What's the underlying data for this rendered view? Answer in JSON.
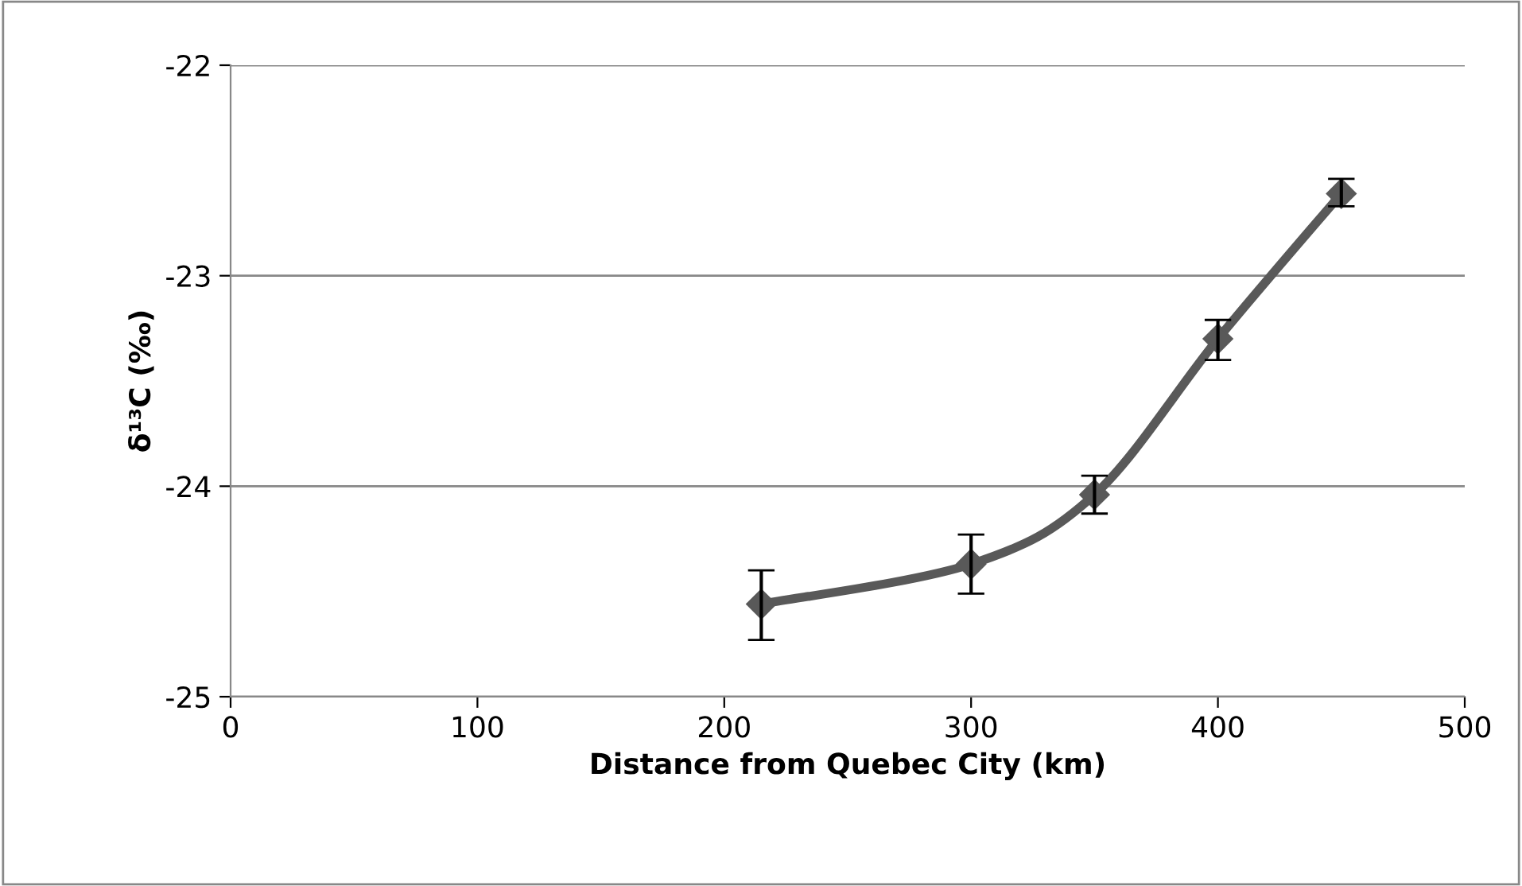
{
  "chart_data": {
    "type": "line",
    "xlabel": "Distance from Quebec City (km)",
    "ylabel": "δ¹³C (‰)",
    "x": [
      215,
      300,
      350,
      400,
      450
    ],
    "series": [
      {
        "color": "#595959",
        "values": [
          -24.56,
          -24.37,
          -24.04,
          -23.3,
          -22.61
        ],
        "errors": [
          [
            -24.73,
            -24.4
          ],
          [
            -24.51,
            -24.23
          ],
          [
            -24.13,
            -23.95
          ],
          [
            -23.4,
            -23.21
          ],
          [
            -22.67,
            -22.54
          ]
        ]
      }
    ],
    "xlim": [
      0,
      500
    ],
    "xticks": [
      0,
      100,
      200,
      300,
      400,
      500
    ],
    "ylim": [
      -25,
      -22
    ],
    "yticks": [
      -25,
      -24,
      -23,
      -22
    ],
    "grid": "y",
    "marker": "diamond",
    "line_style": "solid",
    "legend": false
  }
}
